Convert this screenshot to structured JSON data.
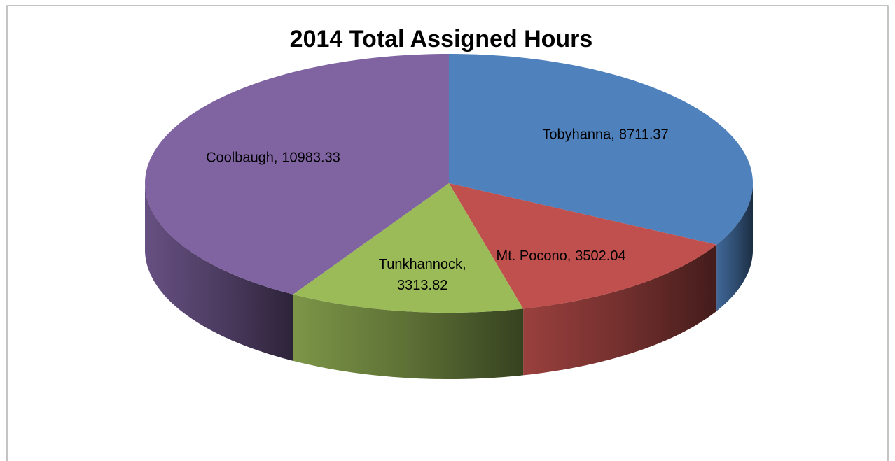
{
  "chart_data": {
    "type": "pie",
    "title": "2014 Total Assigned Hours",
    "categories": [
      "Tobyhanna",
      "Mt. Pocono",
      "Tunkhannock",
      "Coolbaugh"
    ],
    "values": [
      8711.37,
      3502.04,
      3313.82,
      10983.33
    ],
    "colors": [
      "#4f81bd",
      "#c0504d",
      "#9bbb59",
      "#8064a2"
    ],
    "label_separator": ",",
    "three_d": true
  }
}
